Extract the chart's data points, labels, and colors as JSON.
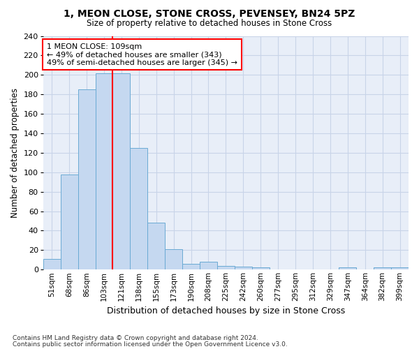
{
  "title1": "1, MEON CLOSE, STONE CROSS, PEVENSEY, BN24 5PZ",
  "title2": "Size of property relative to detached houses in Stone Cross",
  "xlabel": "Distribution of detached houses by size in Stone Cross",
  "ylabel": "Number of detached properties",
  "categories": [
    "51sqm",
    "68sqm",
    "86sqm",
    "103sqm",
    "121sqm",
    "138sqm",
    "155sqm",
    "173sqm",
    "190sqm",
    "208sqm",
    "225sqm",
    "242sqm",
    "260sqm",
    "277sqm",
    "295sqm",
    "312sqm",
    "329sqm",
    "347sqm",
    "364sqm",
    "382sqm",
    "399sqm"
  ],
  "values": [
    11,
    98,
    185,
    202,
    202,
    125,
    48,
    21,
    6,
    8,
    4,
    3,
    2,
    0,
    0,
    0,
    0,
    2,
    0,
    2,
    2
  ],
  "bar_color": "#c5d8f0",
  "bar_edge_color": "#6aaad4",
  "vline_x": 3.5,
  "vline_color": "red",
  "annotation_text": "1 MEON CLOSE: 109sqm\n← 49% of detached houses are smaller (343)\n49% of semi-detached houses are larger (345) →",
  "annotation_box_color": "white",
  "annotation_box_edge_color": "red",
  "footnote1": "Contains HM Land Registry data © Crown copyright and database right 2024.",
  "footnote2": "Contains public sector information licensed under the Open Government Licence v3.0.",
  "ylim": [
    0,
    240
  ],
  "yticks": [
    0,
    20,
    40,
    60,
    80,
    100,
    120,
    140,
    160,
    180,
    200,
    220,
    240
  ],
  "grid_color": "#c8d4e8",
  "bg_color": "#e8eef8"
}
